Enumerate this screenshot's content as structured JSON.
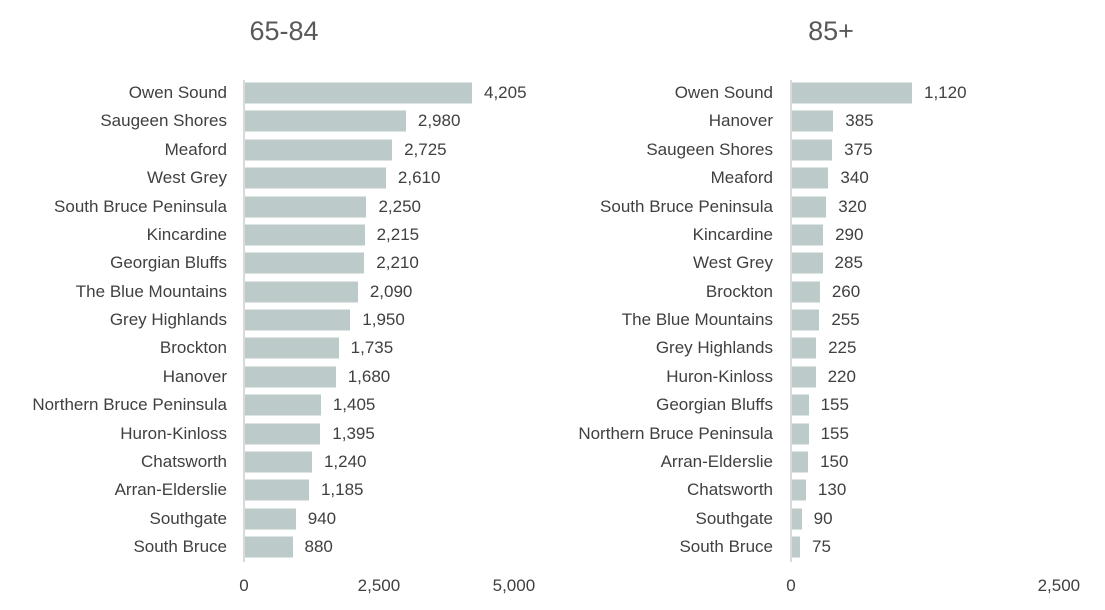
{
  "chart_data": [
    {
      "type": "bar",
      "orientation": "horizontal",
      "title": "65-84",
      "categories": [
        "Owen Sound",
        "Saugeen Shores",
        "Meaford",
        "West Grey",
        "South Bruce Peninsula",
        "Kincardine",
        "Georgian Bluffs",
        "The Blue Mountains",
        "Grey Highlands",
        "Brockton",
        "Hanover",
        "Northern Bruce Peninsula",
        "Huron-Kinloss",
        "Chatsworth",
        "Arran-Elderslie",
        "Southgate",
        "South Bruce"
      ],
      "values": [
        4205,
        2980,
        2725,
        2610,
        2250,
        2215,
        2210,
        2090,
        1950,
        1735,
        1680,
        1405,
        1395,
        1240,
        1185,
        940,
        880
      ],
      "value_labels": [
        "4,205",
        "2,980",
        "2,725",
        "2,610",
        "2,250",
        "2,215",
        "2,210",
        "2,090",
        "1,950",
        "1,735",
        "1,680",
        "1,405",
        "1,395",
        "1,240",
        "1,185",
        "940",
        "880"
      ],
      "xlim": [
        0,
        5000
      ],
      "ticks": [
        0,
        2500,
        5000
      ],
      "tick_labels": [
        "0",
        "2,500",
        "5,000"
      ],
      "grid": false,
      "color": "#bccaca"
    },
    {
      "type": "bar",
      "orientation": "horizontal",
      "title": "85+",
      "categories": [
        "Owen Sound",
        "Hanover",
        "Saugeen Shores",
        "Meaford",
        "South Bruce Peninsula",
        "Kincardine",
        "West Grey",
        "Brockton",
        "The Blue Mountains",
        "Grey Highlands",
        "Huron-Kinloss",
        "Georgian Bluffs",
        "Northern Bruce Peninsula",
        "Arran-Elderslie",
        "Chatsworth",
        "Southgate",
        "South Bruce"
      ],
      "values": [
        1120,
        385,
        375,
        340,
        320,
        290,
        285,
        260,
        255,
        225,
        220,
        155,
        155,
        150,
        130,
        90,
        75
      ],
      "value_labels": [
        "1,120",
        "385",
        "375",
        "340",
        "320",
        "290",
        "285",
        "260",
        "255",
        "225",
        "220",
        "155",
        "155",
        "150",
        "130",
        "90",
        "75"
      ],
      "xlim": [
        0,
        2500
      ],
      "ticks": [
        0,
        2500
      ],
      "tick_labels": [
        "0",
        "2,500"
      ],
      "grid": false,
      "color": "#bccaca"
    }
  ]
}
